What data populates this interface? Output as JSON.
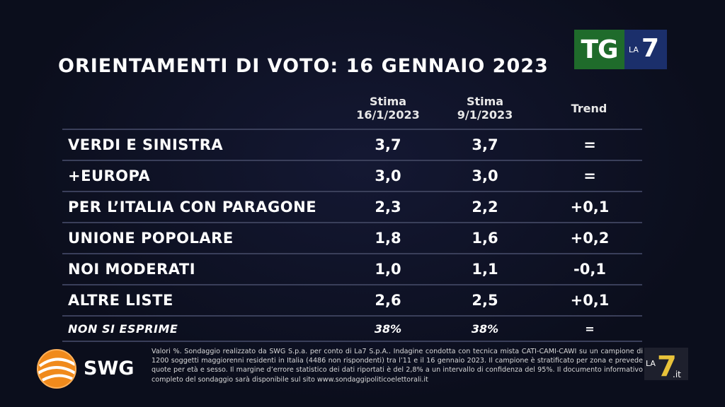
{
  "broadcaster": {
    "tg": "TG",
    "la": "LA",
    "seven": "7"
  },
  "title": "ORIENTAMENTI DI VOTO: 16 GENNAIO 2023",
  "chart_data": {
    "type": "table",
    "columns": [
      {
        "line1": "Stima",
        "line2": "16/1/2023"
      },
      {
        "line1": "Stima",
        "line2": "9/1/2023"
      },
      {
        "line1": "Trend",
        "line2": ""
      }
    ],
    "rows": [
      {
        "name": "VERDI E SINISTRA",
        "v1": "3,7",
        "v2": "3,7",
        "trend": "="
      },
      {
        "name": "+EUROPA",
        "v1": "3,0",
        "v2": "3,0",
        "trend": "="
      },
      {
        "name": "PER L’ITALIA CON PARAGONE",
        "v1": "2,3",
        "v2": "2,2",
        "trend": "+0,1"
      },
      {
        "name": "UNIONE POPOLARE",
        "v1": "1,8",
        "v2": "1,6",
        "trend": "+0,2"
      },
      {
        "name": "NOI MODERATI",
        "v1": "1,0",
        "v2": "1,1",
        "trend": "-0,1"
      },
      {
        "name": "ALTRE LISTE",
        "v1": "2,6",
        "v2": "2,5",
        "trend": "+0,1"
      },
      {
        "name": "NON SI ESPRIME",
        "v1": "38%",
        "v2": "38%",
        "trend": "="
      }
    ]
  },
  "footer": {
    "brand": "SWG",
    "note": "Valori %. Sondaggio realizzato da SWG S.p.a. per conto di La7 S.p.A.. Indagine condotta con tecnica mista CATI-CAMI-CAWI su un campione di 1200 soggetti maggiorenni residenti in Italia (4486 non rispondenti) tra l’11 e il 16 gennaio 2023. Il campione è stratificato per zona e prevede quote per età e sesso. Il margine d’errore statistico dei dati riportati è del 2,8% a un intervallo di confidenza del 95%. Il documento informativo completo del sondaggio sarà disponibile sul sito www.sondaggipoliticoelettorali.it",
    "watermark": {
      "la": "LA",
      "seven": "7",
      "it": ".it"
    }
  },
  "colors": {
    "background": "#0b0e1c",
    "tg_green": "#1f6b2b",
    "la7_blue": "#1b2f6b",
    "swg_orange": "#f08a1c",
    "rule": "#3a3f5a"
  }
}
